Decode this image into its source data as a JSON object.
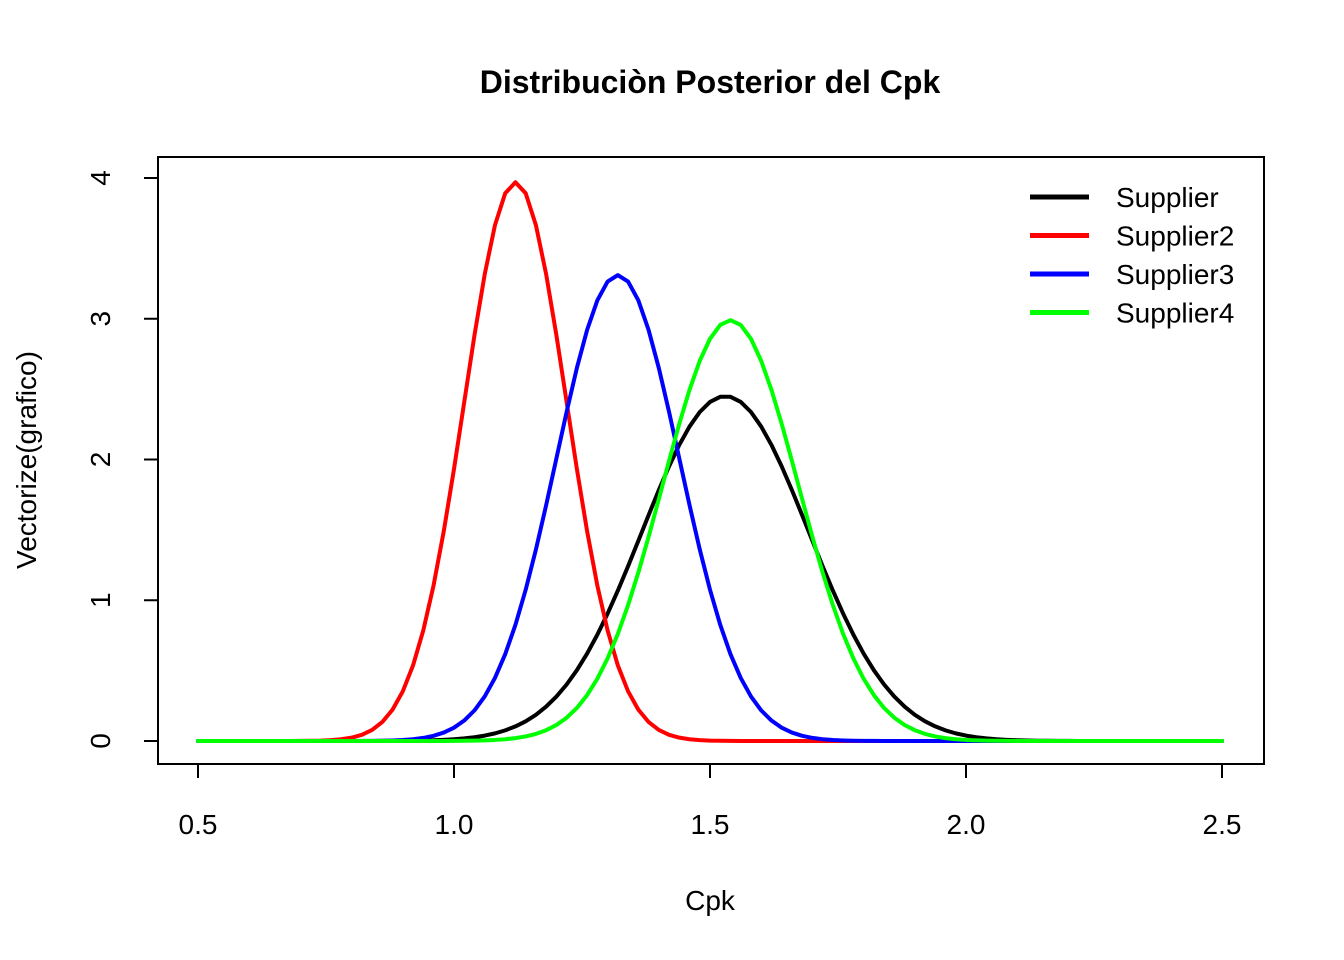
{
  "chart_data": {
    "type": "line",
    "title": "Distribuciòn Posterior del Cpk",
    "xlabel": "Cpk",
    "ylabel": "Vectorize(grafico)",
    "xlim": [
      0.5,
      2.5
    ],
    "ylim": [
      0,
      4
    ],
    "xticks": [
      "0.5",
      "1.0",
      "1.5",
      "2.0",
      "2.5"
    ],
    "yticks": [
      "0",
      "1",
      "2",
      "3",
      "4"
    ],
    "grid": false,
    "legend_position": "top-right",
    "series": [
      {
        "name": "Supplier",
        "color": "#000000",
        "mean": 1.53,
        "sd": 0.163,
        "peak": 2.45
      },
      {
        "name": "Supplier2",
        "color": "#ff0000",
        "mean": 1.12,
        "sd": 0.1,
        "peak": 3.97
      },
      {
        "name": "Supplier3",
        "color": "#0000ff",
        "mean": 1.32,
        "sd": 0.12,
        "peak": 3.31
      },
      {
        "name": "Supplier4",
        "color": "#00ff00",
        "mean": 1.54,
        "sd": 0.133,
        "peak": 2.99
      }
    ]
  }
}
